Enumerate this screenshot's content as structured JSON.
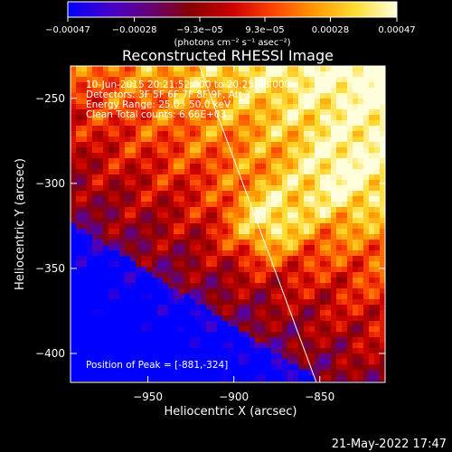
{
  "chart_data": {
    "type": "heatmap",
    "title": "Reconstructed RHESSI Image",
    "xlabel": "Heliocentric X (arcsec)",
    "ylabel": "Heliocentric Y (arcsec)",
    "xlim": [
      -995,
      -812
    ],
    "ylim": [
      -417,
      -231
    ],
    "x_ticks": [
      -950,
      -900,
      -850
    ],
    "x_tick_labels": [
      "−950",
      "−900",
      "−850"
    ],
    "y_ticks": [
      -250,
      -300,
      -350,
      -400
    ],
    "y_tick_labels": [
      "−250",
      "−300",
      "−350",
      "−400"
    ],
    "colorbar": {
      "min": -0.00047,
      "max": 0.00047,
      "ticks": [
        -0.00047,
        -0.00028,
        -9.3e-05,
        9.3e-05,
        0.00028,
        0.00047
      ],
      "tick_labels": [
        "−0.00047",
        "−0.00028",
        "−9.3e−05",
        "9.3e−05",
        "0.00028",
        "0.00047"
      ],
      "unit_label": "(photons cm⁻² s⁻¹ asec⁻²)",
      "colormap": [
        "#0000ff",
        "#4400cc",
        "#660077",
        "#880000",
        "#cc0000",
        "#ff4400",
        "#ff9900",
        "#ffdd33",
        "#ffffdd"
      ]
    },
    "peak": {
      "x": -881,
      "y": -324
    },
    "limb_line": {
      "from": [
        -920,
        -231
      ],
      "to": [
        -852,
        -417
      ],
      "color": "#ffffff"
    },
    "annotations": {
      "time_range": "10-Jun-2015 20:21:52.000 to 20:25:48.000",
      "detectors": "Detectors: 3F 5F 6F 7F 8F 9F, Att 1",
      "energy_range": "Energy Range: 25.0 - 50.0 keV",
      "algorithm": "Clean    Total counts: 6.66E+03",
      "peak_text": "Position of Peak = [-881,-324]"
    },
    "grid": false
  },
  "footer": {
    "date": "21-May-2022 17:47"
  }
}
